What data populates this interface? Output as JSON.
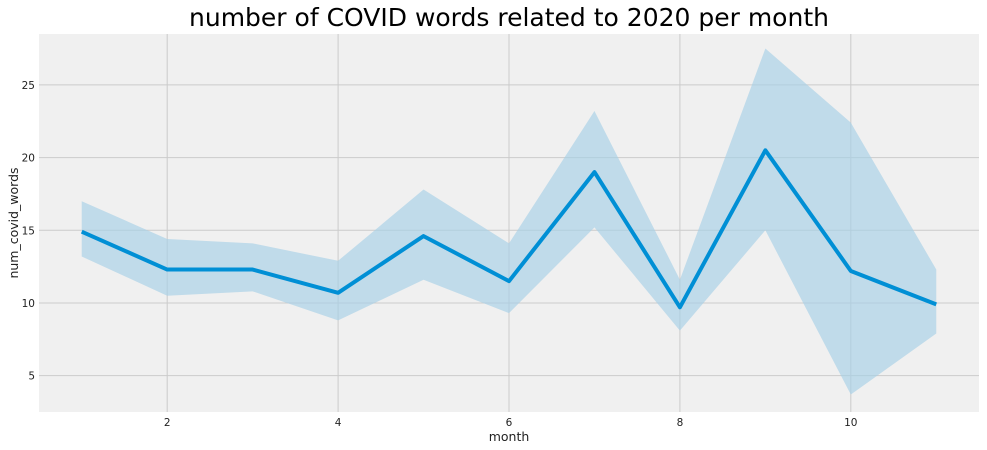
{
  "chart_data": {
    "type": "line",
    "title": "number of COVID words related to 2020 per month",
    "xlabel": "month",
    "ylabel": "num_covid_words",
    "xlim": [
      0.5,
      11.5
    ],
    "ylim": [
      2.5,
      28.5
    ],
    "xticks": [
      2,
      4,
      6,
      8,
      10
    ],
    "yticks": [
      5,
      10,
      15,
      20,
      25
    ],
    "grid": true,
    "line_color": "#008fd5",
    "band_color": "#a6cfe6",
    "background_color": "#f0f0f0",
    "grid_color": "#cbcbcb",
    "series": [
      {
        "x": [
          1,
          2,
          3,
          4,
          5,
          6,
          7,
          8,
          9,
          10,
          11
        ],
        "y": [
          14.9,
          12.3,
          12.3,
          10.7,
          14.6,
          11.5,
          19.0,
          9.7,
          20.5,
          12.2,
          9.9
        ],
        "ci_lower": [
          13.2,
          10.5,
          10.8,
          8.8,
          11.6,
          9.3,
          15.2,
          8.1,
          15.0,
          3.7,
          7.9
        ],
        "ci_upper": [
          17.0,
          14.4,
          14.1,
          12.9,
          17.8,
          14.1,
          23.2,
          11.6,
          27.5,
          22.4,
          12.3
        ]
      }
    ]
  }
}
